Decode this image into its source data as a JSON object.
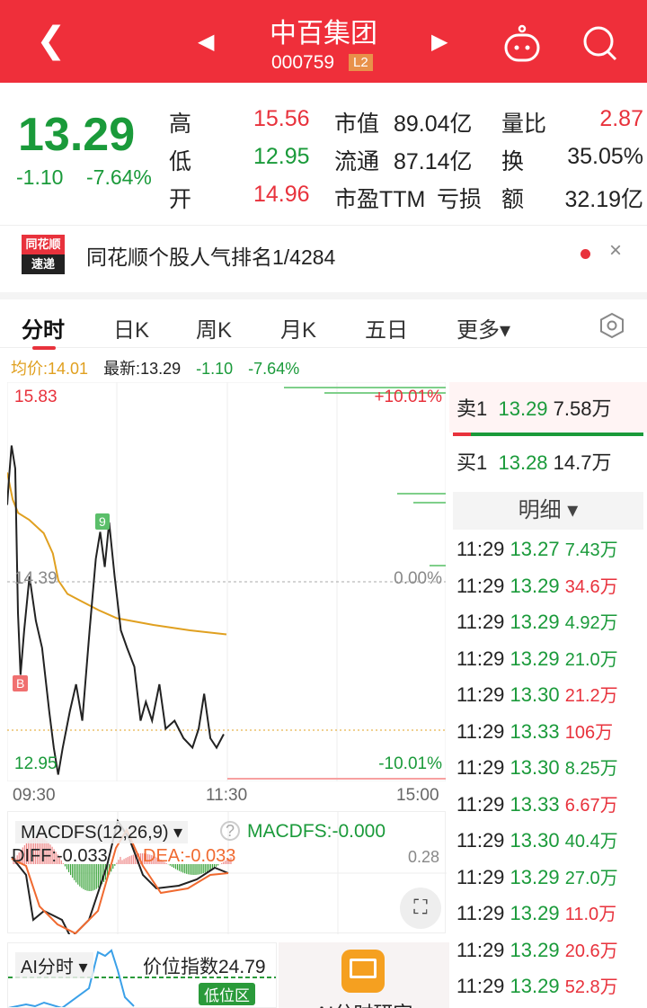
{
  "header": {
    "title": "中百集团",
    "code": "000759",
    "level_badge": "L2",
    "icons": [
      "back-icon",
      "prev-stock-icon",
      "next-stock-icon",
      "robot-icon",
      "search-icon"
    ]
  },
  "quote": {
    "price": "13.29",
    "change": "-1.10",
    "change_pct": "-7.64%",
    "rows": [
      {
        "l1": "高",
        "v1": "15.56",
        "l2": "市值",
        "v2": "89.04亿",
        "l3": "量比",
        "v3": "2.87"
      },
      {
        "l1": "低",
        "v1": "12.95",
        "l2": "流通",
        "v2": "87.14亿",
        "l3": "换",
        "v3": "35.05%"
      },
      {
        "l1": "开",
        "v1": "14.96",
        "l2": "市盈TTM",
        "v2": "亏损",
        "l3": "额",
        "v3": "32.19亿"
      }
    ]
  },
  "news": {
    "logo_top": "同花顺",
    "logo_bottom": "速递",
    "text": "同花顺个股人气排名1/4284"
  },
  "tabs": [
    "分时",
    "日K",
    "周K",
    "月K",
    "五日",
    "更多▾"
  ],
  "info": {
    "avg": "均价:14.01",
    "latest": "最新:13.29",
    "change": "-1.10",
    "pct": "-7.64%"
  },
  "chart": {
    "high": "15.83",
    "low": "12.95",
    "preclose": "14.39",
    "up_pct": "+10.01%",
    "zero_pct": "0.00%",
    "down_pct": "-10.01%",
    "times": [
      "09:30",
      "11:30",
      "15:00"
    ],
    "marker_b": "B",
    "marker_9": "9",
    "colors": {
      "price": "#222222",
      "avg": "#e0a020",
      "up": "#e8323c",
      "down": "#1a9a3a"
    },
    "price_series": [
      [
        0,
        14.96
      ],
      [
        1,
        15.16
      ],
      [
        2.4,
        15.4
      ],
      [
        4.4,
        15.23
      ],
      [
        5.9,
        14.16
      ],
      [
        7.3,
        13.7
      ],
      [
        9.3,
        14.03
      ],
      [
        12.2,
        14.43
      ],
      [
        15.7,
        14.1
      ],
      [
        19.1,
        13.9
      ],
      [
        23,
        13.43
      ],
      [
        25.5,
        13.16
      ],
      [
        27.9,
        12.96
      ],
      [
        30.4,
        13.16
      ],
      [
        34.3,
        13.43
      ],
      [
        37.7,
        13.63
      ],
      [
        41.1,
        13.36
      ],
      [
        45.1,
        14.03
      ],
      [
        48.5,
        14.56
      ],
      [
        50.9,
        14.76
      ],
      [
        53.4,
        14.5
      ],
      [
        55.8,
        14.83
      ],
      [
        58.8,
        14.43
      ],
      [
        62.2,
        14.03
      ],
      [
        65.6,
        13.9
      ],
      [
        69.6,
        13.76
      ],
      [
        73,
        13.36
      ],
      [
        75.9,
        13.5
      ],
      [
        79.3,
        13.36
      ],
      [
        83.3,
        13.63
      ],
      [
        86.7,
        13.3
      ],
      [
        91.6,
        13.36
      ],
      [
        96.5,
        13.23
      ],
      [
        101.4,
        13.16
      ],
      [
        104.8,
        13.3
      ],
      [
        107.8,
        13.56
      ],
      [
        111.2,
        13.23
      ],
      [
        114.6,
        13.16
      ],
      [
        118.5,
        13.26
      ]
    ],
    "avg_series": [
      [
        0,
        15.2
      ],
      [
        3,
        15.0
      ],
      [
        6,
        14.9
      ],
      [
        12,
        14.85
      ],
      [
        20,
        14.75
      ],
      [
        25,
        14.6
      ],
      [
        28,
        14.4
      ],
      [
        33,
        14.3
      ],
      [
        40,
        14.25
      ],
      [
        50,
        14.18
      ],
      [
        60,
        14.12
      ],
      [
        80,
        14.07
      ],
      [
        100,
        14.03
      ],
      [
        120,
        14.0
      ]
    ]
  },
  "macd": {
    "name": "MACDFS(12,26,9) ▾",
    "value": "MACDFS:-0.000",
    "max": "0.28",
    "diff": "DIFF:-0.033",
    "dea": "DEA:-0.033"
  },
  "ai": {
    "name": "AI分时 ▾",
    "index": "价位指数24.79",
    "badge": "低位区",
    "card": "AI分时研究"
  },
  "book": {
    "sell": {
      "label": "卖1",
      "price": "13.29",
      "vol": "7.58万"
    },
    "buy": {
      "label": "买1",
      "price": "13.28",
      "vol": "14.7万"
    },
    "detail": "明细 ▾",
    "trades": [
      [
        "11:29",
        "13.27",
        "7.43万",
        "g"
      ],
      [
        "11:29",
        "13.29",
        "34.6万",
        "r"
      ],
      [
        "11:29",
        "13.29",
        "4.92万",
        "g"
      ],
      [
        "11:29",
        "13.29",
        "21.0万",
        "g"
      ],
      [
        "11:29",
        "13.30",
        "21.2万",
        "r"
      ],
      [
        "11:29",
        "13.33",
        "106万",
        "r"
      ],
      [
        "11:29",
        "13.30",
        "8.25万",
        "g"
      ],
      [
        "11:29",
        "13.33",
        "6.67万",
        "r"
      ],
      [
        "11:29",
        "13.30",
        "40.4万",
        "g"
      ],
      [
        "11:29",
        "13.29",
        "27.0万",
        "g"
      ],
      [
        "11:29",
        "13.29",
        "11.0万",
        "r"
      ],
      [
        "11:29",
        "13.29",
        "20.6万",
        "r"
      ],
      [
        "11:29",
        "13.29",
        "52.8万",
        "r"
      ]
    ]
  }
}
